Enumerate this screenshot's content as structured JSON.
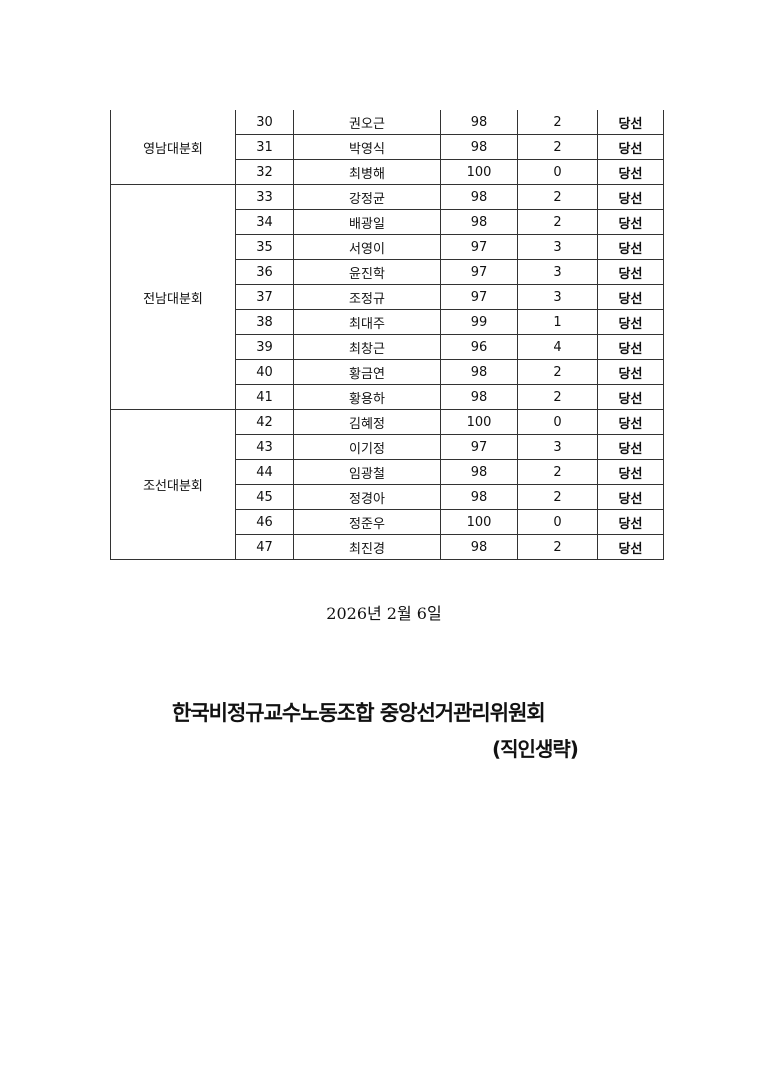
{
  "groups": [
    {
      "name": "영남대분회",
      "rows": [
        {
          "no": "30",
          "name": "권오근",
          "yes": "98",
          "no_votes": "2",
          "result": "당선"
        },
        {
          "no": "31",
          "name": "박영식",
          "yes": "98",
          "no_votes": "2",
          "result": "당선"
        },
        {
          "no": "32",
          "name": "최병해",
          "yes": "100",
          "no_votes": "0",
          "result": "당선"
        }
      ]
    },
    {
      "name": "전남대분회",
      "rows": [
        {
          "no": "33",
          "name": "강정균",
          "yes": "98",
          "no_votes": "2",
          "result": "당선"
        },
        {
          "no": "34",
          "name": "배광일",
          "yes": "98",
          "no_votes": "2",
          "result": "당선"
        },
        {
          "no": "35",
          "name": "서영이",
          "yes": "97",
          "no_votes": "3",
          "result": "당선"
        },
        {
          "no": "36",
          "name": "윤진학",
          "yes": "97",
          "no_votes": "3",
          "result": "당선"
        },
        {
          "no": "37",
          "name": "조정규",
          "yes": "97",
          "no_votes": "3",
          "result": "당선"
        },
        {
          "no": "38",
          "name": "최대주",
          "yes": "99",
          "no_votes": "1",
          "result": "당선"
        },
        {
          "no": "39",
          "name": "최창근",
          "yes": "96",
          "no_votes": "4",
          "result": "당선"
        },
        {
          "no": "40",
          "name": "황금연",
          "yes": "98",
          "no_votes": "2",
          "result": "당선"
        },
        {
          "no": "41",
          "name": "황용하",
          "yes": "98",
          "no_votes": "2",
          "result": "당선"
        }
      ]
    },
    {
      "name": "조선대분회",
      "rows": [
        {
          "no": "42",
          "name": "김혜정",
          "yes": "100",
          "no_votes": "0",
          "result": "당선"
        },
        {
          "no": "43",
          "name": "이기정",
          "yes": "97",
          "no_votes": "3",
          "result": "당선"
        },
        {
          "no": "44",
          "name": "임광철",
          "yes": "98",
          "no_votes": "2",
          "result": "당선"
        },
        {
          "no": "45",
          "name": "정경아",
          "yes": "98",
          "no_votes": "2",
          "result": "당선"
        },
        {
          "no": "46",
          "name": "정준우",
          "yes": "100",
          "no_votes": "0",
          "result": "당선"
        },
        {
          "no": "47",
          "name": "최진경",
          "yes": "98",
          "no_votes": "2",
          "result": "당선"
        }
      ]
    }
  ],
  "date": "2026년 2월 6일",
  "organization": "한국비정규교수노동조합 중앙선거관리위원회",
  "seal_note": "(직인생략)"
}
